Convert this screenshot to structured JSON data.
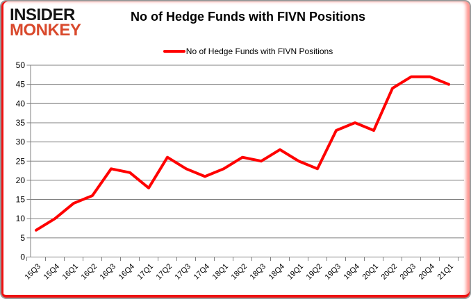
{
  "logo": {
    "line1": "INSIDER",
    "line2": "MONKEY",
    "line1_color": "#141414",
    "line2_color": "#d9492c"
  },
  "chart_data": {
    "type": "line",
    "title": "No of Hedge Funds with FIVN Positions",
    "legend_label": "No of Hedge Funds with FIVN Positions",
    "legend_position": "top",
    "categories": [
      "15Q3",
      "15Q4",
      "16Q1",
      "16Q2",
      "16Q3",
      "16Q4",
      "17Q1",
      "17Q2",
      "17Q3",
      "17Q4",
      "18Q1",
      "18Q2",
      "18Q3",
      "18Q4",
      "19Q1",
      "19Q2",
      "19Q3",
      "19Q4",
      "20Q1",
      "20Q2",
      "20Q3",
      "20Q4",
      "21Q1"
    ],
    "values": [
      7,
      10,
      14,
      16,
      23,
      22,
      18,
      26,
      23,
      21,
      23,
      26,
      25,
      28,
      25,
      23,
      33,
      35,
      33,
      44,
      47,
      47,
      45
    ],
    "xlabel": "",
    "ylabel": "",
    "ylim": [
      0,
      50
    ],
    "yticks": [
      0,
      5,
      10,
      15,
      20,
      25,
      30,
      35,
      40,
      45,
      50
    ],
    "grid": true,
    "line_color": "#ff0000",
    "grid_color": "#808080",
    "axis_color": "#808080",
    "text_color": "#000000",
    "accent_border_color": "#ee1111"
  }
}
